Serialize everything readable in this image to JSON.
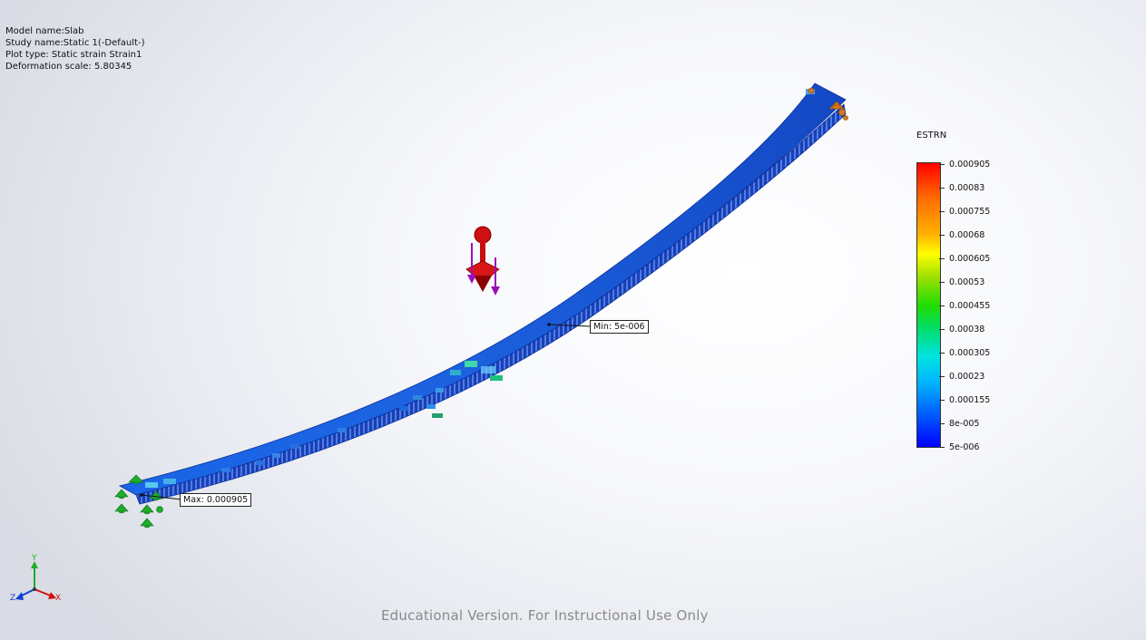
{
  "info": {
    "model_name": "Model name:Slab",
    "study_name": "Study name:Static 1(-Default-)",
    "plot_type": "Plot type: Static strain Strain1",
    "deformation_scale": "Deformation scale: 5.80345"
  },
  "callouts": {
    "min_label": "Min: 5e-006",
    "max_label": "Max: 0.000905"
  },
  "legend": {
    "title": "ESTRN",
    "labels": [
      "0.000905",
      "0.00083",
      "0.000755",
      "0.00068",
      "0.000605",
      "0.00053",
      "0.000455",
      "0.00038",
      "0.000305",
      "0.00023",
      "0.000155",
      "8e-005",
      "5e-006"
    ],
    "colors": {
      "max": "#ff0000",
      "min": "#0000ff"
    }
  },
  "triad": {
    "x": "X",
    "y": "Y",
    "z": "Z"
  },
  "watermark": "Educational Version. For Instructional Use Only",
  "icons": {
    "load": "force-arrow-icon",
    "fixture_left": "fixed-geometry-icon",
    "fixture_right": "roller-support-icon",
    "axes": "coordinate-triad-icon"
  },
  "colors": {
    "beam_base": "#1e5ad6",
    "beam_edge": "#0a2f9a",
    "load_color": "#d01010",
    "fixture_green": "#1cae2a",
    "fixture_orange": "#d8781a"
  }
}
